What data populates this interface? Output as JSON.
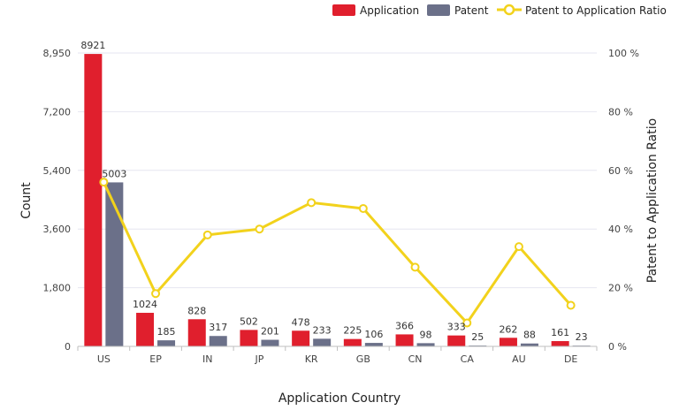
{
  "chart_data": {
    "type": "bar",
    "categories": [
      "US",
      "EP",
      "IN",
      "JP",
      "KR",
      "GB",
      "CN",
      "CA",
      "AU",
      "DE"
    ],
    "series": [
      {
        "name": "Application",
        "kind": "bar",
        "axis": "left",
        "color": "#e01f2d",
        "values": [
          8921,
          1024,
          828,
          502,
          478,
          225,
          366,
          333,
          262,
          161
        ]
      },
      {
        "name": "Patent",
        "kind": "bar",
        "axis": "left",
        "color": "#6b7089",
        "values": [
          5003,
          185,
          317,
          201,
          233,
          106,
          98,
          25,
          88,
          23
        ]
      },
      {
        "name": "Patent to Application Ratio",
        "kind": "line",
        "axis": "right",
        "color": "#f2d21c",
        "values": [
          56,
          18,
          38,
          40,
          49,
          47,
          27,
          8,
          34,
          14
        ]
      }
    ],
    "xlabel": "Application Country",
    "ylabel": "Count",
    "y2label": "Patent to Application Ratio",
    "ylim": [
      0,
      8950
    ],
    "yticks": [
      "0",
      "1,800",
      "3,600",
      "5,400",
      "7,200",
      "8,950"
    ],
    "y2lim": [
      0,
      100
    ],
    "y2ticks": [
      "0 %",
      "20 %",
      "40 %",
      "60 %",
      "80 %",
      "100 %"
    ],
    "grid": true,
    "legend": "top-right"
  }
}
